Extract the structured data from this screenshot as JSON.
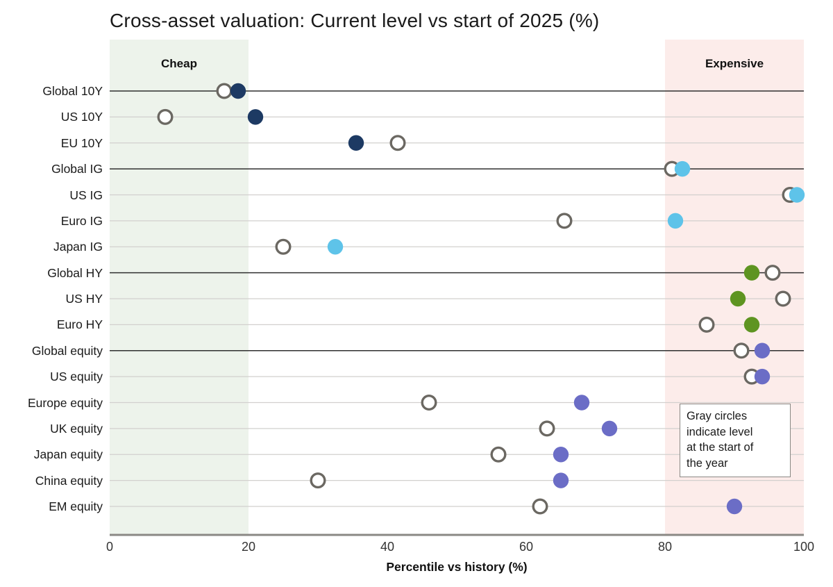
{
  "title": "Cross-asset valuation: Current level vs start of 2025 (%)",
  "annotation": {
    "text": "Gray circles indicate level at the start of the year",
    "lines": [
      "Gray circles",
      "indicate level",
      "at the start of",
      "the year"
    ]
  },
  "colors": {
    "navy": "#1d3a63",
    "light_blue": "#5ec3e9",
    "green": "#5e9421",
    "purple": "#6b6dc6",
    "start_marker": "#6b6862",
    "marker_fill": "#ffffff",
    "cheap_band": "#edf3eb",
    "expensive_band": "#fcecea",
    "grid_dark": "#2f2f2f",
    "grid_light": "#d2d0ce",
    "axis": "#8a8884"
  },
  "chart_data": {
    "type": "scatter",
    "title": "Cross-asset valuation: Current level vs start of 2025 (%)",
    "xlabel": "Percentile vs history (%)",
    "ylabel": "",
    "xlim": [
      0,
      100
    ],
    "xticks": [
      "0",
      "20",
      "40",
      "60",
      "80",
      "100"
    ],
    "xtick_values": [
      0,
      20,
      40,
      60,
      80,
      100
    ],
    "grid": "horizontal",
    "bands": [
      {
        "label": "Cheap",
        "from": 0,
        "to": 20,
        "color": "#edf3eb"
      },
      {
        "label": "Expensive",
        "from": 80,
        "to": 100,
        "color": "#fcecea"
      }
    ],
    "categories": [
      "Global 10Y",
      "US 10Y",
      "EU 10Y",
      "Global IG",
      "US IG",
      "Euro IG",
      "Japan IG",
      "Global HY",
      "US HY",
      "Euro HY",
      "Global equity",
      "US equity",
      "Europe equity",
      "UK equity",
      "Japan equity",
      "China equity",
      "EM equity"
    ],
    "category_groups": [
      "rates",
      "rates",
      "rates",
      "ig",
      "ig",
      "ig",
      "ig",
      "hy",
      "hy",
      "hy",
      "equity",
      "equity",
      "equity",
      "equity",
      "equity",
      "equity",
      "equity"
    ],
    "group_colors": {
      "rates": "#1d3a63",
      "ig": "#5ec3e9",
      "hy": "#5e9421",
      "equity": "#6b6dc6"
    },
    "emphasized_rows": [
      "Global 10Y",
      "Global IG",
      "Global HY",
      "Global equity"
    ],
    "series": [
      {
        "name": "Level at start of the year",
        "marker": "open-gray-circle",
        "values": [
          16.5,
          8,
          41.5,
          81,
          98,
          65.5,
          25,
          95.5,
          97,
          86,
          91,
          92.5,
          46,
          63,
          56,
          30,
          62
        ]
      },
      {
        "name": "Current level",
        "marker": "filled-circle",
        "values": [
          18.5,
          21,
          35.5,
          82.5,
          99,
          81.5,
          32.5,
          92.5,
          90.5,
          92.5,
          94,
          94,
          68,
          72,
          65,
          65,
          90
        ]
      }
    ],
    "legend_note": "Gray circles indicate level at the start of the year"
  }
}
